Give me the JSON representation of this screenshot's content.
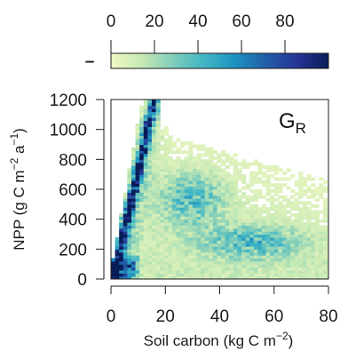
{
  "chart_data": {
    "type": "heatmap",
    "panel_label": "G",
    "panel_label_subscript": "R",
    "xlabel": "Soil carbon (kg C m",
    "xlabel_exponent": "−2",
    "xlabel_close": ")",
    "ylabel": "NPP (g C m",
    "ylabel_exponent1": "−2",
    "ylabel_middle": " a",
    "ylabel_exponent2": "−1",
    "ylabel_close": ")",
    "xlim": [
      0,
      80
    ],
    "ylim": [
      0,
      1200
    ],
    "xticks": [
      0,
      20,
      40,
      60,
      80
    ],
    "yticks": [
      0,
      200,
      400,
      600,
      800,
      1000,
      1200
    ],
    "bin_size": {
      "x": 1.5,
      "y": 20
    },
    "colorbar": {
      "range": [
        0,
        100
      ],
      "ticks": [
        0,
        20,
        40,
        60,
        80
      ],
      "label": "–",
      "colors": [
        "#eff8c2",
        "#c7e9b4",
        "#7fcdbb",
        "#41b6c4",
        "#1d91c0",
        "#225ea8",
        "#253494",
        "#081d58"
      ]
    },
    "density_features": [
      {
        "name": "steep ridge",
        "path": [
          [
            0.5,
            20
          ],
          [
            4,
            260
          ],
          [
            8,
            560
          ],
          [
            11,
            800
          ],
          [
            14,
            1050
          ],
          [
            16,
            1200
          ]
        ],
        "peak_count": 85
      },
      {
        "name": "shallow ridge",
        "path": [
          [
            0.5,
            10
          ],
          [
            3,
            30
          ],
          [
            6,
            60
          ],
          [
            9,
            100
          ]
        ],
        "peak_count": 55
      },
      {
        "name": "central cluster",
        "center": [
          30,
          540
        ],
        "peak_count": 30
      },
      {
        "name": "lower right cluster",
        "center": [
          52,
          250
        ],
        "peak_count": 30
      }
    ],
    "grid": false,
    "legend": "top"
  }
}
